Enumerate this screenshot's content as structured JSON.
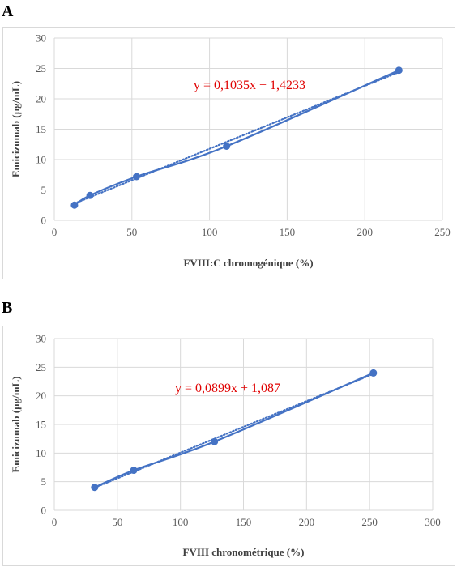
{
  "panels": [
    {
      "letter": "A",
      "chart_data": {
        "type": "scatter",
        "xlabel": "FVIII:C chromogénique (%)",
        "ylabel": "Emicizumab (µg/mL)",
        "xlim": [
          0,
          250
        ],
        "ylim": [
          0,
          30
        ],
        "xticks": [
          0,
          50,
          100,
          150,
          200,
          250
        ],
        "yticks": [
          0,
          5,
          10,
          15,
          20,
          25,
          30
        ],
        "grid": true,
        "series": [
          {
            "x": [
              13,
              23,
              53,
              111,
              222
            ],
            "y": [
              2.5,
              4.1,
              7.2,
              12.2,
              24.7
            ],
            "color": "#4472c4",
            "line": "smooth"
          }
        ],
        "trendline": {
          "slope": 0.1035,
          "intercept": 1.4233,
          "style": "dotted",
          "color": "#4472c4"
        },
        "equation": "y = 0,1035x + 1,4233"
      }
    },
    {
      "letter": "B",
      "chart_data": {
        "type": "scatter",
        "xlabel": "FVIII chronométrique (%)",
        "ylabel": "Emicizumab (µg/mL)",
        "xlim": [
          0,
          300
        ],
        "ylim": [
          0,
          30
        ],
        "xticks": [
          0,
          50,
          100,
          150,
          200,
          250,
          300
        ],
        "yticks": [
          0,
          5,
          10,
          15,
          20,
          25,
          30
        ],
        "grid": true,
        "series": [
          {
            "x": [
              32,
              63,
              127,
              253
            ],
            "y": [
              4.0,
              7.0,
              12.0,
              24.0
            ],
            "color": "#4472c4",
            "line": "smooth"
          }
        ],
        "trendline": {
          "slope": 0.0899,
          "intercept": 1.087,
          "style": "dotted",
          "color": "#4472c4"
        },
        "equation": "y = 0,0899x + 1,087"
      }
    }
  ]
}
